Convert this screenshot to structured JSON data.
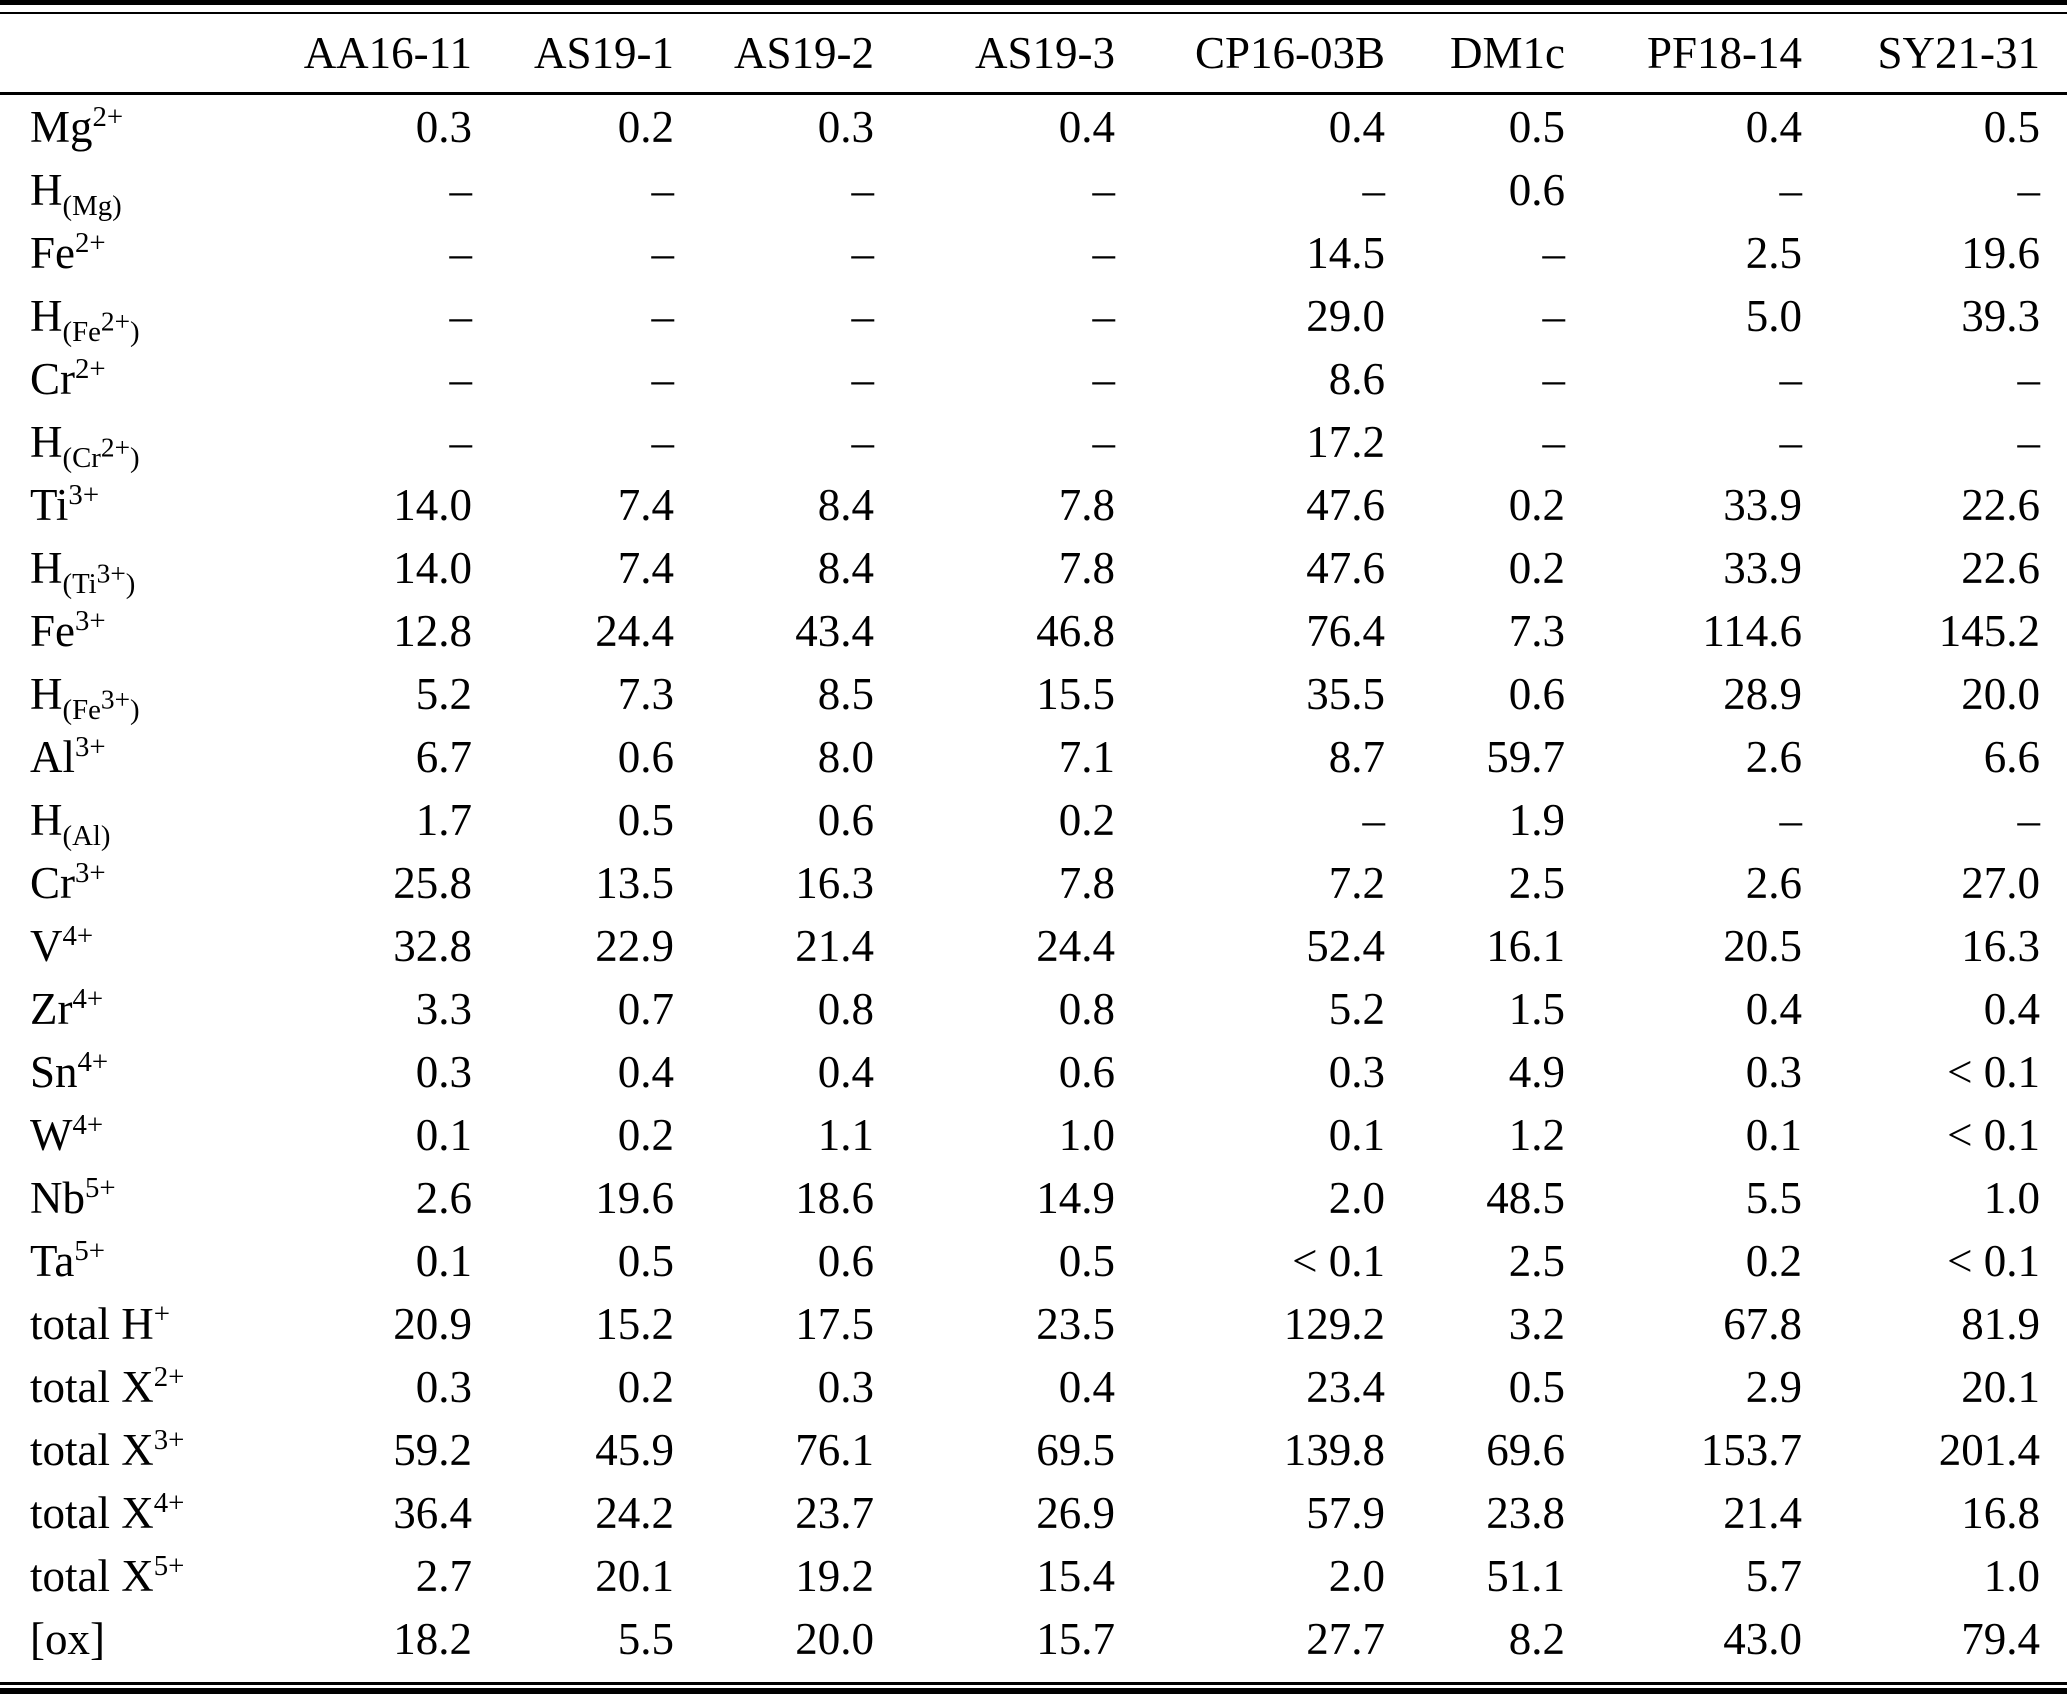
{
  "table": {
    "corner_label": "",
    "columns": [
      "AA16-11",
      "AS19-1",
      "AS19-2",
      "AS19-3",
      "CP16-03B",
      "DM1c",
      "PF18-14",
      "SY21-31"
    ],
    "rows": [
      {
        "label": "Mg^{2+}",
        "values": [
          "0.3",
          "0.2",
          "0.3",
          "0.4",
          "0.4",
          "0.5",
          "0.4",
          "0.5"
        ]
      },
      {
        "label": "H_{(Mg)}",
        "values": [
          "–",
          "–",
          "–",
          "–",
          "–",
          "0.6",
          "–",
          "–"
        ]
      },
      {
        "label": "Fe^{2+}",
        "values": [
          "–",
          "–",
          "–",
          "–",
          "14.5",
          "–",
          "2.5",
          "19.6"
        ]
      },
      {
        "label": "H_{(Fe^{2+})}",
        "values": [
          "–",
          "–",
          "–",
          "–",
          "29.0",
          "–",
          "5.0",
          "39.3"
        ]
      },
      {
        "label": "Cr^{2+}",
        "values": [
          "–",
          "–",
          "–",
          "–",
          "8.6",
          "–",
          "–",
          "–"
        ]
      },
      {
        "label": "H_{(Cr^{2+})}",
        "values": [
          "–",
          "–",
          "–",
          "–",
          "17.2",
          "–",
          "–",
          "–"
        ]
      },
      {
        "label": "Ti^{3+}",
        "values": [
          "14.0",
          "7.4",
          "8.4",
          "7.8",
          "47.6",
          "0.2",
          "33.9",
          "22.6"
        ]
      },
      {
        "label": "H_{(Ti^{3+})}",
        "values": [
          "14.0",
          "7.4",
          "8.4",
          "7.8",
          "47.6",
          "0.2",
          "33.9",
          "22.6"
        ]
      },
      {
        "label": "Fe^{3+}",
        "values": [
          "12.8",
          "24.4",
          "43.4",
          "46.8",
          "76.4",
          "7.3",
          "114.6",
          "145.2"
        ]
      },
      {
        "label": "H_{(Fe^{3+})}",
        "values": [
          "5.2",
          "7.3",
          "8.5",
          "15.5",
          "35.5",
          "0.6",
          "28.9",
          "20.0"
        ]
      },
      {
        "label": "Al^{3+}",
        "values": [
          "6.7",
          "0.6",
          "8.0",
          "7.1",
          "8.7",
          "59.7",
          "2.6",
          "6.6"
        ]
      },
      {
        "label": "H_{(Al)}",
        "values": [
          "1.7",
          "0.5",
          "0.6",
          "0.2",
          "–",
          "1.9",
          "–",
          "–"
        ]
      },
      {
        "label": "Cr^{3+}",
        "values": [
          "25.8",
          "13.5",
          "16.3",
          "7.8",
          "7.2",
          "2.5",
          "2.6",
          "27.0"
        ]
      },
      {
        "label": "V^{4+}",
        "values": [
          "32.8",
          "22.9",
          "21.4",
          "24.4",
          "52.4",
          "16.1",
          "20.5",
          "16.3"
        ]
      },
      {
        "label": "Zr^{4+}",
        "values": [
          "3.3",
          "0.7",
          "0.8",
          "0.8",
          "5.2",
          "1.5",
          "0.4",
          "0.4"
        ]
      },
      {
        "label": "Sn^{4+}",
        "values": [
          "0.3",
          "0.4",
          "0.4",
          "0.6",
          "0.3",
          "4.9",
          "0.3",
          "< 0.1"
        ]
      },
      {
        "label": "W^{4+}",
        "values": [
          "0.1",
          "0.2",
          "1.1",
          "1.0",
          "0.1",
          "1.2",
          "0.1",
          "< 0.1"
        ]
      },
      {
        "label": "Nb^{5+}",
        "values": [
          "2.6",
          "19.6",
          "18.6",
          "14.9",
          "2.0",
          "48.5",
          "5.5",
          "1.0"
        ]
      },
      {
        "label": "Ta^{5+}",
        "values": [
          "0.1",
          "0.5",
          "0.6",
          "0.5",
          "< 0.1",
          "2.5",
          "0.2",
          "< 0.1"
        ]
      },
      {
        "label": "total H^{+}",
        "values": [
          "20.9",
          "15.2",
          "17.5",
          "23.5",
          "129.2",
          "3.2",
          "67.8",
          "81.9"
        ]
      },
      {
        "label": "total X^{2+}",
        "values": [
          "0.3",
          "0.2",
          "0.3",
          "0.4",
          "23.4",
          "0.5",
          "2.9",
          "20.1"
        ]
      },
      {
        "label": "total X^{3+}",
        "values": [
          "59.2",
          "45.9",
          "76.1",
          "69.5",
          "139.8",
          "69.6",
          "153.7",
          "201.4"
        ]
      },
      {
        "label": "total X^{4+}",
        "values": [
          "36.4",
          "24.2",
          "23.7",
          "26.9",
          "57.9",
          "23.8",
          "21.4",
          "16.8"
        ]
      },
      {
        "label": "total X^{5+}",
        "values": [
          "2.7",
          "20.1",
          "19.2",
          "15.4",
          "2.0",
          "51.1",
          "5.7",
          "1.0"
        ]
      },
      {
        "label": "[ox]",
        "values": [
          "18.2",
          "5.5",
          "20.0",
          "15.7",
          "27.7",
          "8.2",
          "43.0",
          "79.4"
        ]
      }
    ],
    "colors": {
      "text": "#000000",
      "background": "#ffffff",
      "rule": "#000000"
    }
  }
}
